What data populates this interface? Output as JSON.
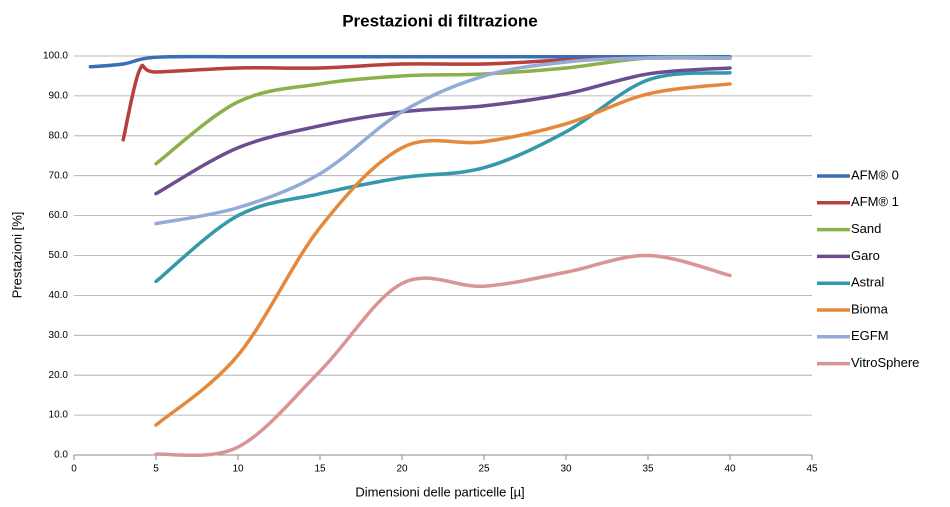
{
  "chart_data": {
    "type": "line",
    "title": "Prestazioni di filtrazione",
    "x_label": "Dimensioni delle particelle [µ]",
    "y_label": "Prestazioni  [%]",
    "xlim": [
      0,
      45
    ],
    "xticks": [
      0,
      5,
      10,
      15,
      20,
      25,
      30,
      35,
      40,
      45
    ],
    "ylim": [
      0,
      100
    ],
    "yticks": [
      {
        "value": 0,
        "label": "0.0"
      },
      {
        "value": 10,
        "label": "10.0"
      },
      {
        "value": 20,
        "label": "20.0"
      },
      {
        "value": 30,
        "label": "30.0"
      },
      {
        "value": 40,
        "label": "40.0"
      },
      {
        "value": 50,
        "label": "50.0"
      },
      {
        "value": 60,
        "label": "60.0"
      },
      {
        "value": 70,
        "label": "70.0"
      },
      {
        "value": 80,
        "label": "80.0"
      },
      {
        "value": 90,
        "label": "90.0"
      },
      {
        "value": 100,
        "label": "100.0"
      }
    ],
    "grid": true,
    "legend": "right",
    "series": [
      {
        "name": "AFM® 0",
        "color": "#3a6fb5",
        "x": [
          1,
          3,
          5,
          10,
          15,
          20,
          25,
          30,
          35,
          40
        ],
        "values": [
          97.3,
          98,
          99.7,
          99.8,
          99.8,
          99.8,
          99.8,
          99.8,
          99.8,
          99.8
        ]
      },
      {
        "name": "AFM® 1",
        "color": "#b5403d",
        "x": [
          3,
          4,
          5,
          10,
          15,
          20,
          25,
          30,
          35,
          40
        ],
        "values": [
          79,
          96.5,
          96,
          97,
          97,
          98,
          98,
          99,
          99.5,
          99.5
        ]
      },
      {
        "name": "Sand",
        "color": "#8cb04a",
        "x": [
          5,
          10,
          15,
          20,
          25,
          30,
          35,
          40
        ],
        "values": [
          73,
          88.5,
          93,
          95,
          95.5,
          97,
          99.5,
          99.5
        ]
      },
      {
        "name": "Garo",
        "color": "#6c4d92",
        "x": [
          5,
          10,
          15,
          20,
          25,
          30,
          35,
          40
        ],
        "values": [
          65.5,
          77,
          82.5,
          86,
          87.5,
          90.5,
          95.5,
          97
        ]
      },
      {
        "name": "Astral",
        "color": "#3399aa",
        "x": [
          5,
          10,
          15,
          20,
          25,
          30,
          35,
          40
        ],
        "values": [
          43.5,
          60,
          65.5,
          69.5,
          72,
          81,
          94,
          95.8
        ]
      },
      {
        "name": "Bioma",
        "color": "#e6883a",
        "x": [
          5,
          10,
          15,
          20,
          25,
          30,
          35,
          40
        ],
        "values": [
          7.5,
          25,
          57,
          77,
          78.5,
          83,
          90.5,
          93
        ]
      },
      {
        "name": "EGFM",
        "color": "#93abd6",
        "x": [
          5,
          10,
          15,
          20,
          25,
          30,
          35,
          40
        ],
        "values": [
          58,
          62,
          70.5,
          86,
          95,
          98.5,
          99.5,
          99.5
        ]
      },
      {
        "name": "VitroSphere",
        "color": "#d99594",
        "x": [
          5,
          10,
          15,
          20,
          25,
          30,
          35,
          40
        ],
        "values": [
          0.2,
          2,
          21,
          43,
          42.3,
          45.8,
          50,
          45
        ]
      }
    ]
  }
}
